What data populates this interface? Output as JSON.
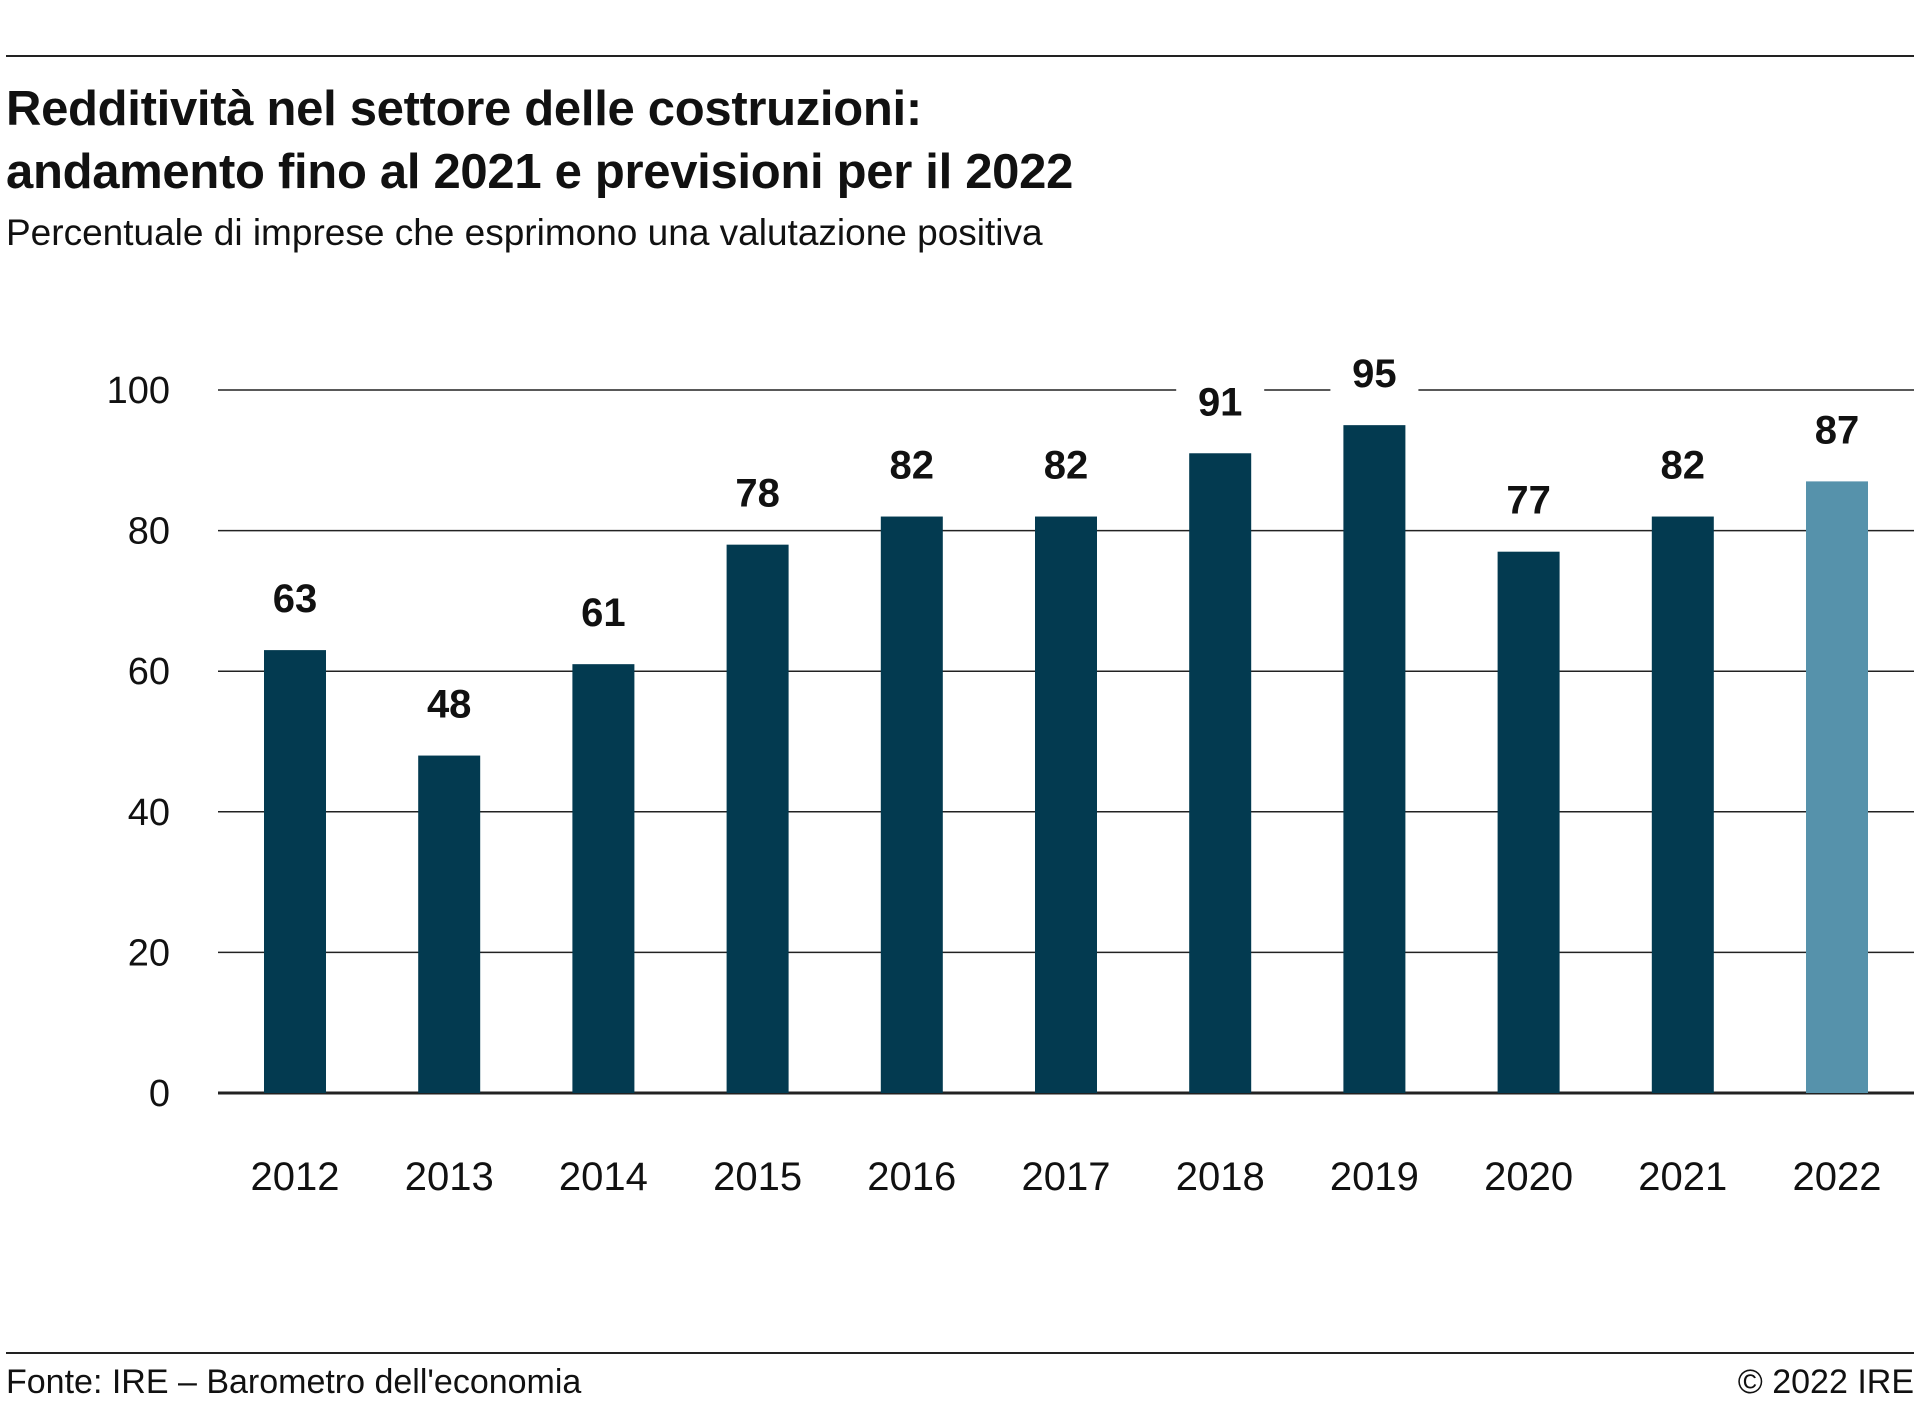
{
  "header": {
    "title_line1": "Redditività nel settore delle costruzioni:",
    "title_line2": "andamento fino al 2021 e previsioni per il 2022",
    "subtitle": "Percentuale di imprese che esprimono una valutazione positiva"
  },
  "footer": {
    "source": "Fonte: IRE – Barometro dell'economia",
    "copyright": "© 2022 IRE"
  },
  "colors": {
    "bar_actual": "#033a50",
    "bar_forecast": "#5692ab",
    "gridline": "#222222",
    "text": "#111111"
  },
  "chart_data": {
    "type": "bar",
    "categories": [
      "2012",
      "2013",
      "2014",
      "2015",
      "2016",
      "2017",
      "2018",
      "2019",
      "2020",
      "2021",
      "2022"
    ],
    "values": [
      63,
      48,
      61,
      78,
      82,
      82,
      91,
      95,
      77,
      82,
      87
    ],
    "data_labels": [
      "63",
      "48",
      "61",
      "78",
      "82",
      "82",
      "91",
      "95",
      "77",
      "82",
      "87"
    ],
    "forecast_categories": [
      "2022"
    ],
    "ylim": [
      0,
      100
    ],
    "yticks": [
      0,
      20,
      40,
      60,
      80,
      100
    ],
    "ytick_labels": [
      "0",
      "20",
      "40",
      "60",
      "80",
      "100"
    ],
    "grid": true,
    "legend": "none"
  }
}
